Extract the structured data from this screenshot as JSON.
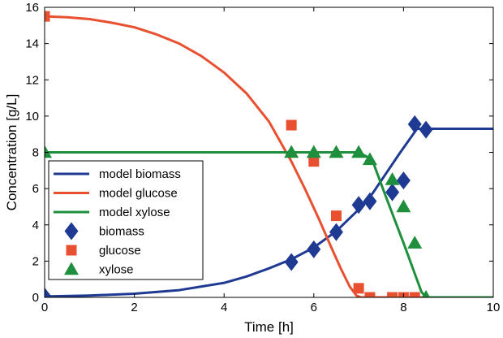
{
  "chart_data": {
    "type": "scatter",
    "xlabel": "Time [h]",
    "ylabel": "Concentration [g/L]",
    "xlim": [
      0,
      10
    ],
    "ylim": [
      0,
      16
    ],
    "xticks": [
      0,
      2,
      4,
      6,
      8,
      10
    ],
    "yticks": [
      0,
      2,
      4,
      6,
      8,
      10,
      12,
      14,
      16
    ],
    "grid": false,
    "legend_position": "middle-left",
    "series": [
      {
        "name": "model biomass",
        "kind": "line",
        "color": "#1f3a93",
        "x": [
          0,
          1,
          2,
          3,
          4,
          4.5,
          5,
          5.5,
          6,
          6.5,
          7,
          7.3,
          7.6,
          7.9,
          8.3,
          8.5,
          9,
          10
        ],
        "y": [
          0.05,
          0.1,
          0.2,
          0.4,
          0.8,
          1.15,
          1.6,
          2.1,
          2.75,
          3.65,
          4.85,
          5.7,
          6.8,
          7.9,
          9.3,
          9.3,
          9.3,
          9.3
        ]
      },
      {
        "name": "model glucose",
        "kind": "line",
        "color": "#e8502f",
        "x": [
          0,
          0.5,
          1,
          1.5,
          2,
          2.5,
          3,
          3.5,
          4,
          4.5,
          5,
          5.5,
          5.8,
          6.1,
          6.4,
          6.6,
          6.8,
          6.95,
          7.05,
          7.2,
          10
        ],
        "y": [
          15.5,
          15.45,
          15.35,
          15.15,
          14.9,
          14.5,
          14.0,
          13.3,
          12.4,
          11.25,
          9.7,
          7.5,
          6.0,
          4.4,
          2.7,
          1.6,
          0.6,
          0.1,
          0,
          0,
          0
        ]
      },
      {
        "name": "model xylose",
        "kind": "line",
        "color": "#1e8f3c",
        "x": [
          0,
          6.5,
          7.0,
          7.3,
          7.6,
          8.0,
          8.4,
          8.5,
          10
        ],
        "y": [
          8.0,
          8.0,
          8.0,
          7.6,
          5.6,
          3.0,
          0.3,
          0,
          0
        ]
      },
      {
        "name": "biomass",
        "kind": "marker",
        "marker": "diamond",
        "color": "#1f3a93",
        "x": [
          0,
          5.5,
          6.0,
          6.5,
          7.0,
          7.25,
          7.75,
          8.0,
          8.25,
          8.5
        ],
        "y": [
          0.05,
          1.95,
          2.65,
          3.6,
          5.1,
          5.3,
          5.8,
          6.45,
          9.55,
          9.25
        ]
      },
      {
        "name": "glucose",
        "kind": "marker",
        "marker": "square",
        "color": "#e8502f",
        "x": [
          0,
          5.5,
          6.0,
          6.5,
          7.0,
          7.25,
          7.75,
          8.0,
          8.25
        ],
        "y": [
          15.5,
          9.5,
          7.5,
          4.5,
          0.5,
          0,
          0,
          0,
          0
        ]
      },
      {
        "name": "xylose",
        "kind": "marker",
        "marker": "triangle",
        "color": "#1e8f3c",
        "x": [
          0,
          5.5,
          6.0,
          6.5,
          7.0,
          7.25,
          7.75,
          8.0,
          8.25,
          8.5
        ],
        "y": [
          8.0,
          8.0,
          8.0,
          8.0,
          8.0,
          7.6,
          6.5,
          5.0,
          3.0,
          0
        ]
      }
    ]
  }
}
